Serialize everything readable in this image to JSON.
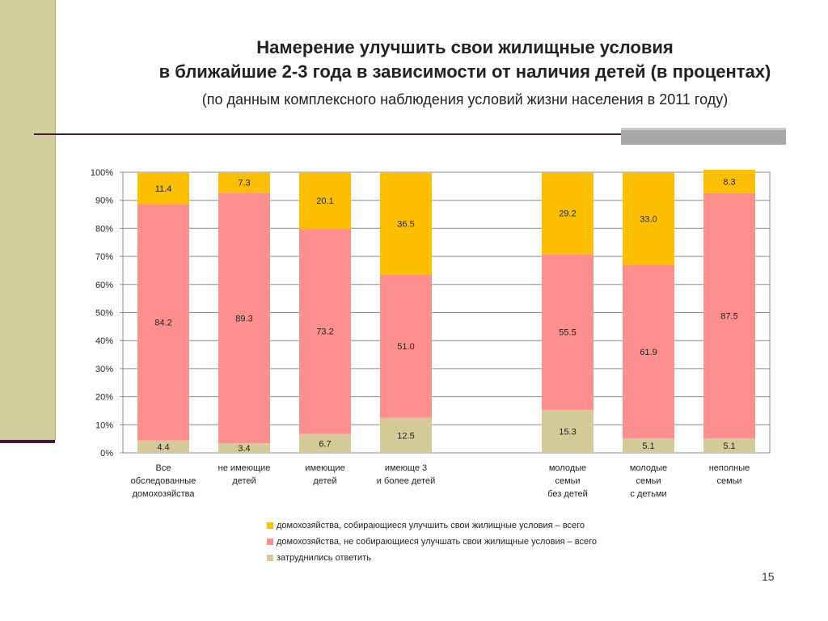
{
  "title": {
    "line1": "Намерение улучшить свои жилищные условия",
    "line2": "в ближайшие 2-3 года в зависимости от наличия детей (в процентах)",
    "subtitle": "(по данным комплексного наблюдения условий жизни населения в 2011 году)"
  },
  "page_number": "15",
  "colors": {
    "improve": "#fdbf00",
    "not_improve": "#ff8f8f",
    "hard_to_say": "#d4cb98",
    "header_line": "#4a1838",
    "side_band": "#d2cf9e"
  },
  "chart_data": {
    "type": "bar",
    "stacked": true,
    "percent_stacked": true,
    "categories": [
      [
        "Все",
        "обследованные",
        "домохозяйства"
      ],
      [
        "не имеющие",
        "детей"
      ],
      [
        "имеющие",
        "детей"
      ],
      [
        "имеюще  3",
        "и более детей"
      ],
      null,
      [
        "молодые",
        "семьи",
        "без детей"
      ],
      [
        "молодые",
        "семьи",
        "с детьми"
      ],
      [
        "неполные",
        "семьи"
      ]
    ],
    "y_ticks": [
      "0%",
      "10%",
      "20%",
      "30%",
      "40%",
      "50%",
      "60%",
      "70%",
      "80%",
      "90%",
      "100%"
    ],
    "ylim": [
      0,
      100
    ],
    "grid": true,
    "legend_position": "bottom",
    "series": [
      {
        "name": "затруднились ответить",
        "color": "#d4cb98",
        "values": [
          4.4,
          3.4,
          6.7,
          12.5,
          null,
          15.3,
          5.1,
          5.1
        ]
      },
      {
        "name": "домохозяйства, не собирающиеся улучшать свои жилищные условия – всего",
        "color": "#ff8f8f",
        "values": [
          84.2,
          89.3,
          73.2,
          51.0,
          null,
          55.5,
          61.9,
          87.5
        ]
      },
      {
        "name": "домохозяйства, собирающиеся улучшить свои жилищные условия – всего",
        "color": "#fdbf00",
        "values": [
          11.4,
          7.3,
          20.1,
          36.5,
          null,
          29.2,
          33.0,
          8.3
        ]
      }
    ],
    "legend": [
      "домохозяйства, собирающиеся улучшить свои жилищные условия – всего",
      "домохозяйства, не собирающиеся улучшать свои жилищные условия – всего",
      "затруднились ответить"
    ]
  }
}
